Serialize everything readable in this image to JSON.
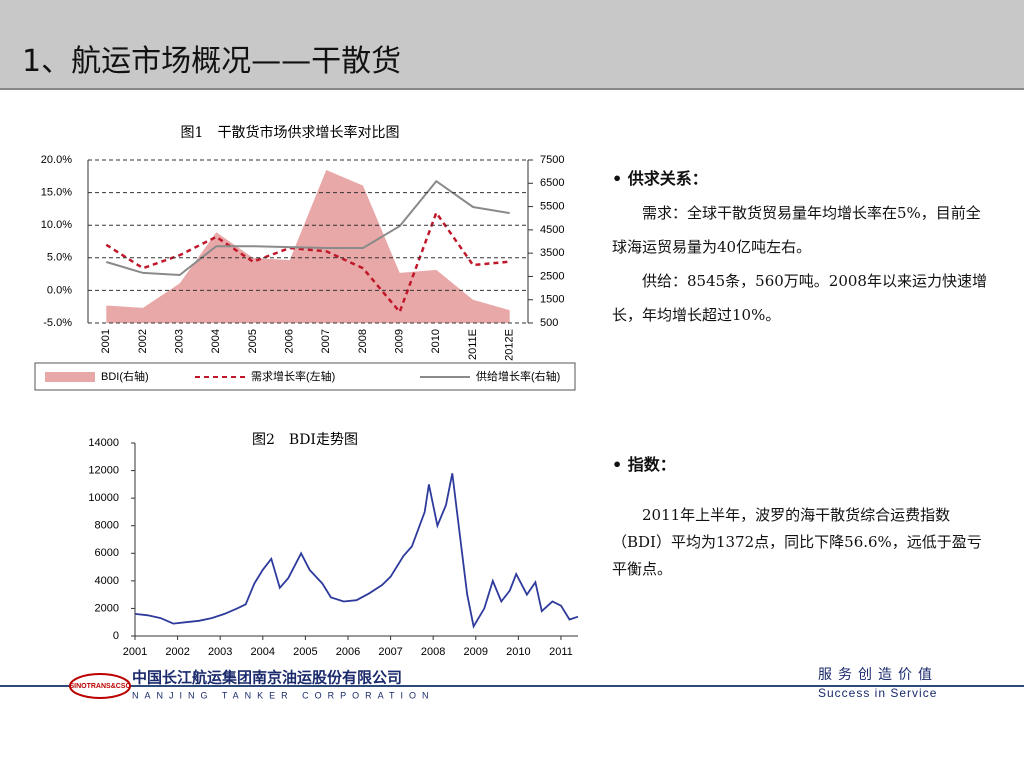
{
  "header": {
    "title": "1、航运市场概况——干散货"
  },
  "chart_data": [
    {
      "type": "combo",
      "title": "图1　干散货市场供求增长率对比图",
      "categories": [
        "2001",
        "2002",
        "2003",
        "2004",
        "2005",
        "2006",
        "2007",
        "2008",
        "2009",
        "2010",
        "2011E",
        "2012E"
      ],
      "series": [
        {
          "name": "BDI(右轴)",
          "color": "#e8a8a8",
          "style": "area",
          "axis": "y2",
          "values": [
            1250,
            1150,
            2200,
            4400,
            3300,
            3200,
            7070,
            6400,
            2650,
            2780,
            1500,
            1050
          ]
        },
        {
          "name": "需求增长率(左轴)",
          "color": "#c0182a",
          "style": "dashed",
          "axis": "y",
          "values": [
            7.0,
            3.4,
            5.4,
            8.2,
            4.4,
            6.5,
            6.0,
            3.4,
            -3.3,
            11.9,
            3.9,
            4.4
          ]
        },
        {
          "name": "供给增长率(右轴)",
          "color": "#8a8a8a",
          "style": "solid",
          "axis": "y2",
          "values": [
            3120,
            2650,
            2560,
            3800,
            3800,
            3760,
            3720,
            3720,
            4660,
            6590,
            5480,
            5220
          ]
        }
      ],
      "ylim": [
        -5,
        20
      ],
      "yticks": [
        {
          "value": 20,
          "label": "20.0%"
        },
        {
          "value": 15,
          "label": "15.0%"
        },
        {
          "value": 10,
          "label": "10.0%"
        },
        {
          "value": 5,
          "label": "5.0%"
        },
        {
          "value": 0,
          "label": "0.0%"
        },
        {
          "value": -5,
          "label": "-5.0%"
        }
      ],
      "y2lim": [
        500,
        7500
      ],
      "y2ticks": [
        7500,
        6500,
        5500,
        4500,
        3500,
        2500,
        1500,
        500
      ],
      "grid": true
    },
    {
      "type": "line",
      "title": "图2　BDI走势图",
      "color": "#2e3a9c",
      "x": [
        2001.0,
        2001.3,
        2001.6,
        2001.9,
        2002.2,
        2002.5,
        2002.8,
        2003.1,
        2003.4,
        2003.6,
        2003.8,
        2004.0,
        2004.2,
        2004.4,
        2004.6,
        2004.9,
        2005.1,
        2005.4,
        2005.6,
        2005.9,
        2006.2,
        2006.5,
        2006.8,
        2007.0,
        2007.3,
        2007.5,
        2007.8,
        2007.9,
        2008.1,
        2008.3,
        2008.45,
        2008.6,
        2008.8,
        2008.95,
        2009.2,
        2009.4,
        2009.6,
        2009.8,
        2009.95,
        2010.2,
        2010.4,
        2010.55,
        2010.8,
        2011.0,
        2011.2,
        2011.4
      ],
      "values": [
        1600,
        1500,
        1300,
        900,
        1000,
        1100,
        1300,
        1600,
        2000,
        2300,
        3800,
        4800,
        5600,
        3500,
        4200,
        6000,
        4800,
        3800,
        2800,
        2500,
        2600,
        3100,
        3700,
        4300,
        5800,
        6500,
        9000,
        11000,
        8000,
        9500,
        11800,
        8000,
        3000,
        700,
        2000,
        4000,
        2500,
        3300,
        4500,
        3000,
        3900,
        1800,
        2500,
        2200,
        1200,
        1400
      ],
      "xlim": [
        2001,
        2011.4
      ],
      "xticks": [
        2001,
        2002,
        2003,
        2004,
        2005,
        2006,
        2007,
        2008,
        2009,
        2010,
        2011
      ],
      "ylim": [
        0,
        14000
      ],
      "yticks": [
        0,
        2000,
        4000,
        6000,
        8000,
        10000,
        12000,
        14000
      ],
      "grid": false
    }
  ],
  "sections": [
    {
      "heading": "供求关系：",
      "paragraphs": [
        "需求：全球干散货贸易量年均增长率在5%，目前全球海运贸易量为40亿吨左右。",
        "供给：8545条，560万吨。2008年以来运力快速增长，年均增长超过10%。"
      ]
    },
    {
      "heading": "指数：",
      "paragraphs": [
        "2011年上半年，波罗的海干散货综合运费指数（BDI）平均为1372点，同比下降56.6%，远低于盈亏平衡点。"
      ]
    }
  ],
  "footer": {
    "logo": "SINOTRANS&CSC",
    "company": "中国长江航运集团南京油运股份有限公司",
    "company_en": "NANJING TANKER CORPORATION",
    "slogan": "服务创造价值",
    "slogan_en": "Success in Service"
  }
}
